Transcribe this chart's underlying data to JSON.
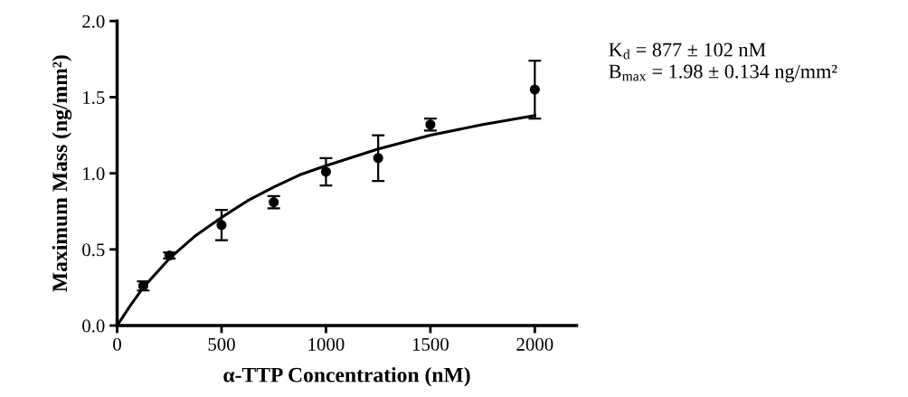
{
  "chart_data": {
    "type": "scatter",
    "xlabel": "α-TTP Concentration (nM)",
    "ylabel": "Maximum Mass (ng/mm²)",
    "annotations": [
      "K$_{d}$ = 877 ± 102 nM",
      "B$_{max}$ = 1.98 ± 0.134 ng/mm²"
    ],
    "xlim": [
      0,
      2200
    ],
    "xticks": [
      0,
      500,
      1000,
      1500,
      2000
    ],
    "ylim": [
      0,
      2.0
    ],
    "yticks": [
      {
        "value": 0,
        "label": "0.0"
      },
      0.5,
      {
        "value": 1,
        "label": "1.0"
      },
      1.5,
      {
        "value": 2,
        "label": "2.0"
      }
    ],
    "grid": false,
    "legend": false,
    "marker": "circle",
    "series": [
      {
        "color": "#000000",
        "x": [
          125,
          250,
          500,
          750,
          1000,
          1250,
          1500,
          2000
        ],
        "values": [
          0.26,
          0.46,
          0.66,
          0.81,
          1.01,
          1.1,
          1.32,
          1.55
        ],
        "errors": [
          [
            0.23,
            0.29
          ],
          [
            0.44,
            0.48
          ],
          [
            0.56,
            0.76
          ],
          [
            0.77,
            0.85
          ],
          [
            0.92,
            1.1
          ],
          [
            0.95,
            1.25
          ],
          [
            1.28,
            1.36
          ],
          [
            1.36,
            1.74
          ]
        ]
      },
      {
        "type": "line",
        "color": "#000000",
        "marker": "none",
        "line_style": "solid",
        "x": [
          0,
          62.5,
          125,
          250,
          375,
          500,
          625,
          750,
          875,
          1000,
          1250,
          1500,
          1750,
          2000
        ],
        "values": [
          0,
          0.13,
          0.25,
          0.44,
          0.59,
          0.71,
          0.82,
          0.91,
          0.99,
          1.05,
          1.16,
          1.25,
          1.32,
          1.38
        ]
      }
    ]
  }
}
